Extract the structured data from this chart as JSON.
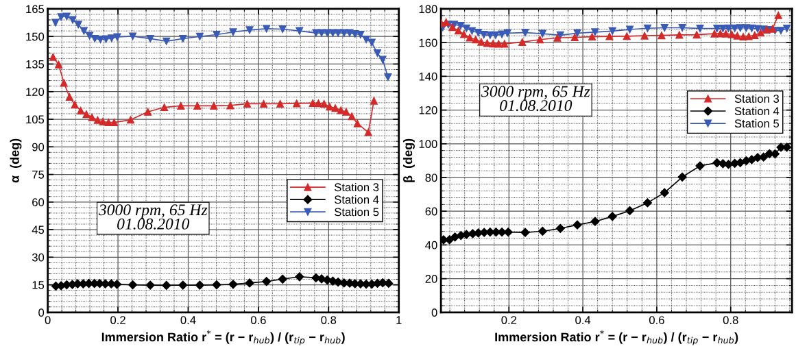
{
  "chart_data": [
    {
      "type": "line",
      "xlabel": "Immersion Ratio r$^{*}$ = (r − r$_{hub}$) / (r$_{tip}$ − r$_{hub}$)",
      "ylabel": "α  (deg)",
      "xlim": [
        0,
        1
      ],
      "xticks": [
        0,
        0.2,
        0.4,
        0.6,
        0.8,
        1
      ],
      "ylim": [
        0,
        165
      ],
      "yticks": [
        0,
        15,
        30,
        45,
        60,
        75,
        90,
        105,
        120,
        135,
        150,
        165
      ],
      "grid": true,
      "legend": "bottom right",
      "annotations": [
        "3000 rpm, 65 Hz\n01.08.2010"
      ],
      "series": [
        {
          "name": "Station 3",
          "color": "#d42a2a",
          "marker": "triangle",
          "x": [
            0.015,
            0.031,
            0.046,
            0.062,
            0.077,
            0.094,
            0.11,
            0.126,
            0.142,
            0.157,
            0.173,
            0.189,
            0.236,
            0.285,
            0.332,
            0.379,
            0.426,
            0.473,
            0.52,
            0.568,
            0.615,
            0.662,
            0.709,
            0.755,
            0.771,
            0.787,
            0.803,
            0.819,
            0.835,
            0.85,
            0.866,
            0.882,
            0.913,
            0.929
          ],
          "values": [
            138.8,
            134.7,
            124.8,
            117.1,
            112.9,
            109.7,
            107.7,
            106,
            104.6,
            103.7,
            103.3,
            103.3,
            104.7,
            109,
            111.5,
            112.3,
            112.3,
            112.3,
            112.5,
            113.4,
            113.4,
            113.4,
            113.6,
            113.8,
            113.7,
            113.4,
            111.8,
            111.1,
            109.9,
            109,
            106.6,
            102.7,
            97.9,
            115
          ]
        },
        {
          "name": "Station 4",
          "color": "#000000",
          "marker": "diamond",
          "x": [
            0.023,
            0.038,
            0.054,
            0.07,
            0.085,
            0.101,
            0.117,
            0.133,
            0.148,
            0.164,
            0.181,
            0.197,
            0.242,
            0.292,
            0.338,
            0.385,
            0.433,
            0.481,
            0.528,
            0.575,
            0.623,
            0.669,
            0.717,
            0.764,
            0.78,
            0.796,
            0.812,
            0.827,
            0.844,
            0.86,
            0.875,
            0.891,
            0.907,
            0.923,
            0.939,
            0.954,
            0.971
          ],
          "values": [
            14.3,
            14.5,
            15,
            15.2,
            15.5,
            15.5,
            15.7,
            15.7,
            15.7,
            15.5,
            15.5,
            15.3,
            15,
            14.8,
            14.7,
            14.8,
            14.8,
            15,
            15.3,
            16,
            16.8,
            18.1,
            19.4,
            18.8,
            18.2,
            17.6,
            17,
            16.5,
            16,
            15.9,
            15.6,
            15.5,
            15.4,
            15.4,
            15.8,
            16.1,
            15.8
          ]
        },
        {
          "name": "Station 5",
          "color": "#3a5bb5",
          "marker": "triangle_down",
          "x": [
            0.022,
            0.038,
            0.054,
            0.071,
            0.087,
            0.103,
            0.119,
            0.134,
            0.15,
            0.166,
            0.182,
            0.198,
            0.242,
            0.292,
            0.338,
            0.385,
            0.433,
            0.481,
            0.528,
            0.575,
            0.623,
            0.669,
            0.717,
            0.764,
            0.78,
            0.796,
            0.812,
            0.827,
            0.844,
            0.86,
            0.875,
            0.891,
            0.907,
            0.923,
            0.939,
            0.954,
            0.969
          ],
          "values": [
            157.5,
            160.6,
            160.9,
            159,
            156.5,
            153,
            150.4,
            148.8,
            148.4,
            148.6,
            149,
            149.7,
            150.1,
            148.8,
            147.4,
            148.8,
            150,
            151,
            152.4,
            153.5,
            154.2,
            154,
            153,
            151.9,
            151.9,
            151.9,
            151.9,
            151.9,
            151.9,
            151.9,
            151.4,
            151,
            148.4,
            146.7,
            140.9,
            137.4,
            127.9
          ]
        }
      ]
    },
    {
      "type": "line",
      "xlabel": "Immersion Ratio r$^{*}$ = (r − r$_{hub}$) / (r$_{tip}$ − r$_{hub}$)",
      "ylabel": "β  (deg)",
      "xlim": [
        0.016,
        0.966
      ],
      "xticks": [
        0.2,
        0.4,
        0.6,
        0.8
      ],
      "ylim": [
        0,
        180
      ],
      "yticks": [
        0,
        20,
        40,
        60,
        80,
        100,
        120,
        140,
        160,
        180
      ],
      "grid": true,
      "legend": "right",
      "annotations": [
        "3000 rpm, 65 Hz\n01.08.2010"
      ],
      "series": [
        {
          "name": "Station 3",
          "color": "#d42a2a",
          "marker": "triangle",
          "x": [
            0.017,
            0.03,
            0.047,
            0.063,
            0.078,
            0.094,
            0.11,
            0.125,
            0.141,
            0.157,
            0.172,
            0.188,
            0.236,
            0.284,
            0.331,
            0.378,
            0.425,
            0.472,
            0.519,
            0.567,
            0.613,
            0.661,
            0.708,
            0.756,
            0.772,
            0.787,
            0.803,
            0.818,
            0.834,
            0.849,
            0.865,
            0.881,
            0.897,
            0.913,
            0.929
          ],
          "values": [
            171.5,
            172.1,
            169.1,
            167.1,
            165,
            162.9,
            161.8,
            160.4,
            159.7,
            159.4,
            159.3,
            159.3,
            160.3,
            161.8,
            162.8,
            163.1,
            163.5,
            163.7,
            163.8,
            164.1,
            164.3,
            164.6,
            164.7,
            165.3,
            165.4,
            165.3,
            164.9,
            164.1,
            163.5,
            163.7,
            164.4,
            165.9,
            167.6,
            168.1,
            176.2
          ]
        },
        {
          "name": "Station 4",
          "color": "#000000",
          "marker": "diamond",
          "x": [
            0.023,
            0.039,
            0.054,
            0.07,
            0.085,
            0.102,
            0.117,
            0.133,
            0.149,
            0.165,
            0.181,
            0.198,
            0.244,
            0.291,
            0.339,
            0.385,
            0.433,
            0.48,
            0.527,
            0.575,
            0.621,
            0.669,
            0.717,
            0.763,
            0.779,
            0.794,
            0.811,
            0.826,
            0.842,
            0.857,
            0.873,
            0.889,
            0.905,
            0.92,
            0.936,
            0.952
          ],
          "values": [
            43.1,
            43.1,
            44.7,
            45.6,
            46.2,
            46.7,
            47.1,
            47.4,
            47.6,
            47.6,
            47.6,
            47.6,
            47.4,
            48.1,
            49.8,
            51.9,
            53.9,
            56.9,
            60.3,
            65,
            71,
            80.3,
            86.9,
            88.7,
            88.2,
            87.8,
            88.4,
            88.8,
            89.9,
            90.6,
            91.8,
            92.1,
            94.1,
            94,
            97.9,
            97.9
          ]
        },
        {
          "name": "Station 5",
          "color": "#3a5bb5",
          "marker": "triangle_down",
          "x": [
            0.021,
            0.036,
            0.052,
            0.069,
            0.085,
            0.1,
            0.117,
            0.132,
            0.149,
            0.164,
            0.181,
            0.196,
            0.244,
            0.291,
            0.339,
            0.385,
            0.433,
            0.48,
            0.527,
            0.575,
            0.621,
            0.669,
            0.717,
            0.763,
            0.779,
            0.794,
            0.811,
            0.826,
            0.842,
            0.857,
            0.873,
            0.889,
            0.905,
            0.92,
            0.936,
            0.952
          ],
          "values": [
            169.1,
            170.7,
            170.7,
            170,
            168.5,
            166.9,
            165.9,
            164.7,
            164.4,
            164.4,
            164.9,
            165.6,
            165.9,
            165.3,
            164.4,
            165.6,
            166.2,
            166.8,
            167.8,
            168.5,
            168.8,
            168.8,
            168.4,
            168.4,
            168.4,
            168.5,
            168.5,
            168.7,
            168.7,
            168.5,
            168.2,
            167.9,
            167.6,
            167.1,
            167.1,
            168.4
          ]
        }
      ]
    }
  ]
}
